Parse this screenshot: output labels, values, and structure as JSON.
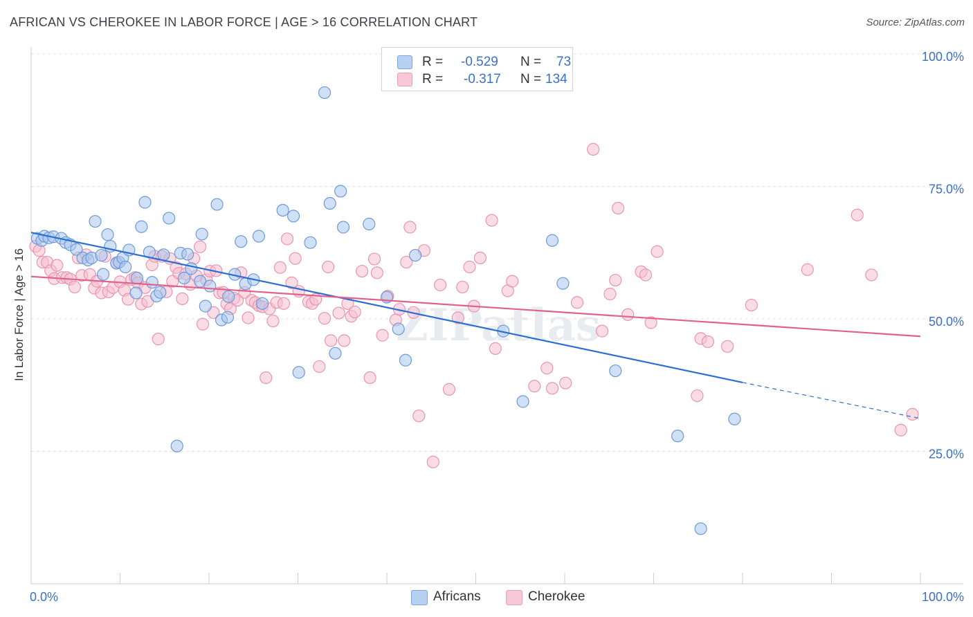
{
  "title": "AFRICAN VS CHEROKEE IN LABOR FORCE | AGE > 16 CORRELATION CHART",
  "source": "Source: ZipAtlas.com",
  "watermark": "ZIPatlas",
  "legend": {
    "r_label": "R =",
    "n_label": "N =",
    "africans": {
      "r": "-0.529",
      "n": "73"
    },
    "cherokee": {
      "r": "-0.317",
      "n": "134"
    }
  },
  "colors": {
    "africans_fill": "#a9c6ee",
    "africans_stroke": "#6d9ad8",
    "africans_line": "#2a6fd0",
    "cherokee_fill": "#f6bfd0",
    "cherokee_stroke": "#e895b1",
    "cherokee_line": "#e0628b",
    "axis_label": "#3b6fc7"
  },
  "chart_data": {
    "type": "scatter",
    "title": "AFRICAN VS CHEROKEE IN LABOR FORCE | AGE > 16 CORRELATION CHART",
    "xlabel": "",
    "ylabel": "In Labor Force | Age > 16",
    "xlim": [
      0,
      100
    ],
    "ylim": [
      0,
      100
    ],
    "x_tick_labels": [
      "0.0%",
      "100.0%"
    ],
    "y_ticks": [
      25,
      50,
      75,
      100
    ],
    "y_tick_labels": [
      "25.0%",
      "50.0%",
      "75.0%",
      "100.0%"
    ],
    "grid": true,
    "legend_position": "top-center",
    "series": [
      {
        "name": "Africans",
        "trend": {
          "x0": 0,
          "y0": 66.3,
          "x1": 80,
          "y1": 38.0,
          "dashed_to_x": 100,
          "dashed_to_y": 31.2
        },
        "points": [
          [
            0.7,
            65.2
          ],
          [
            1.2,
            64.8
          ],
          [
            1.5,
            65.6
          ],
          [
            2.0,
            65.3
          ],
          [
            2.5,
            65.5
          ],
          [
            3.4,
            65.2
          ],
          [
            3.9,
            64.4
          ],
          [
            4.4,
            64.0
          ],
          [
            5.1,
            63.1
          ],
          [
            5.8,
            61.5
          ],
          [
            6.4,
            61.1
          ],
          [
            6.8,
            61.5
          ],
          [
            7.2,
            68.4
          ],
          [
            7.9,
            62.0
          ],
          [
            8.1,
            58.4
          ],
          [
            8.6,
            65.9
          ],
          [
            8.9,
            63.7
          ],
          [
            9.6,
            60.5
          ],
          [
            9.9,
            60.7
          ],
          [
            10.3,
            61.5
          ],
          [
            10.6,
            59.8
          ],
          [
            11.0,
            63.0
          ],
          [
            11.8,
            54.9
          ],
          [
            11.9,
            57.7
          ],
          [
            12.4,
            67.4
          ],
          [
            12.8,
            72.0
          ],
          [
            13.3,
            62.6
          ],
          [
            13.6,
            56.9
          ],
          [
            14.1,
            54.3
          ],
          [
            14.5,
            55.0
          ],
          [
            14.9,
            62.1
          ],
          [
            15.5,
            69.0
          ],
          [
            16.4,
            26.0
          ],
          [
            16.8,
            62.4
          ],
          [
            17.2,
            57.7
          ],
          [
            17.6,
            62.2
          ],
          [
            18.0,
            59.5
          ],
          [
            19.0,
            57.1
          ],
          [
            19.2,
            66.0
          ],
          [
            19.6,
            52.4
          ],
          [
            20.1,
            56.2
          ],
          [
            20.9,
            71.6
          ],
          [
            21.4,
            49.8
          ],
          [
            22.1,
            50.3
          ],
          [
            22.2,
            54.2
          ],
          [
            22.9,
            58.4
          ],
          [
            23.6,
            64.6
          ],
          [
            24.1,
            56.6
          ],
          [
            25.0,
            57.4
          ],
          [
            25.6,
            65.6
          ],
          [
            26.0,
            52.9
          ],
          [
            28.3,
            70.5
          ],
          [
            29.5,
            69.4
          ],
          [
            30.1,
            39.9
          ],
          [
            31.4,
            64.4
          ],
          [
            33.0,
            92.7
          ],
          [
            33.6,
            71.8
          ],
          [
            34.2,
            43.5
          ],
          [
            34.8,
            74.1
          ],
          [
            35.1,
            67.3
          ],
          [
            38.0,
            67.9
          ],
          [
            40.0,
            54.1
          ],
          [
            41.3,
            48.1
          ],
          [
            42.1,
            42.2
          ],
          [
            43.2,
            62.0
          ],
          [
            53.1,
            47.7
          ],
          [
            55.3,
            34.4
          ],
          [
            58.6,
            64.8
          ],
          [
            59.8,
            56.7
          ],
          [
            65.7,
            40.2
          ],
          [
            72.7,
            27.9
          ],
          [
            75.3,
            10.4
          ],
          [
            79.1,
            31.1
          ]
        ]
      },
      {
        "name": "Cherokee",
        "trend": {
          "x0": 0,
          "y0": 58.0,
          "x1": 100,
          "y1": 46.7
        },
        "points": [
          [
            0.5,
            63.7
          ],
          [
            0.9,
            62.9
          ],
          [
            1.3,
            60.7
          ],
          [
            1.8,
            60.7
          ],
          [
            2.2,
            59.1
          ],
          [
            2.6,
            57.6
          ],
          [
            2.9,
            60.1
          ],
          [
            3.5,
            57.8
          ],
          [
            4.0,
            57.8
          ],
          [
            4.4,
            57.5
          ],
          [
            4.9,
            56.0
          ],
          [
            5.3,
            61.5
          ],
          [
            5.7,
            58.2
          ],
          [
            6.2,
            62.1
          ],
          [
            6.6,
            58.4
          ],
          [
            7.1,
            55.8
          ],
          [
            7.4,
            57.1
          ],
          [
            7.9,
            54.9
          ],
          [
            8.3,
            61.8
          ],
          [
            8.7,
            55.1
          ],
          [
            9.2,
            55.9
          ],
          [
            9.6,
            60.6
          ],
          [
            10.0,
            57.0
          ],
          [
            10.5,
            55.4
          ],
          [
            10.9,
            53.7
          ],
          [
            11.3,
            57.4
          ],
          [
            11.7,
            57.8
          ],
          [
            12.0,
            56.8
          ],
          [
            12.4,
            52.8
          ],
          [
            12.8,
            55.9
          ],
          [
            13.1,
            53.3
          ],
          [
            13.6,
            60.2
          ],
          [
            13.9,
            61.8
          ],
          [
            14.3,
            46.2
          ],
          [
            14.7,
            61.8
          ],
          [
            15.2,
            55.1
          ],
          [
            15.6,
            61.4
          ],
          [
            15.9,
            57.1
          ],
          [
            16.3,
            59.7
          ],
          [
            16.6,
            58.6
          ],
          [
            17.0,
            53.8
          ],
          [
            17.4,
            58.5
          ],
          [
            17.9,
            56.5
          ],
          [
            18.3,
            61.4
          ],
          [
            18.6,
            58.1
          ],
          [
            19.0,
            63.6
          ],
          [
            19.3,
            49.0
          ],
          [
            19.7,
            57.4
          ],
          [
            20.1,
            59.0
          ],
          [
            20.5,
            51.2
          ],
          [
            20.8,
            59.1
          ],
          [
            21.2,
            54.9
          ],
          [
            21.6,
            55.0
          ],
          [
            22.0,
            52.8
          ],
          [
            22.4,
            51.9
          ],
          [
            22.8,
            53.9
          ],
          [
            23.2,
            53.5
          ],
          [
            23.6,
            58.7
          ],
          [
            24.0,
            55.0
          ],
          [
            24.4,
            50.2
          ],
          [
            24.8,
            53.5
          ],
          [
            25.2,
            53.1
          ],
          [
            25.6,
            52.5
          ],
          [
            26.0,
            52.3
          ],
          [
            26.4,
            38.9
          ],
          [
            26.8,
            51.9
          ],
          [
            27.2,
            49.6
          ],
          [
            27.6,
            53.1
          ],
          [
            28.0,
            59.7
          ],
          [
            28.4,
            52.9
          ],
          [
            28.8,
            65.1
          ],
          [
            29.3,
            56.8
          ],
          [
            29.7,
            61.4
          ],
          [
            30.1,
            55.2
          ],
          [
            31.2,
            53.2
          ],
          [
            31.6,
            52.9
          ],
          [
            32.0,
            53.7
          ],
          [
            32.4,
            41.0
          ],
          [
            33.0,
            50.1
          ],
          [
            33.4,
            59.8
          ],
          [
            33.7,
            45.9
          ],
          [
            34.6,
            51.1
          ],
          [
            35.2,
            45.9
          ],
          [
            35.6,
            52.9
          ],
          [
            36.0,
            50.5
          ],
          [
            36.4,
            51.3
          ],
          [
            37.2,
            59.0
          ],
          [
            38.1,
            38.9
          ],
          [
            38.6,
            61.3
          ],
          [
            38.9,
            58.7
          ],
          [
            39.5,
            46.9
          ],
          [
            40.1,
            54.3
          ],
          [
            41.0,
            49.8
          ],
          [
            41.4,
            51.8
          ],
          [
            42.2,
            60.7
          ],
          [
            42.6,
            67.3
          ],
          [
            43.0,
            51.2
          ],
          [
            43.6,
            31.7
          ],
          [
            44.2,
            62.9
          ],
          [
            45.2,
            23.0
          ],
          [
            46.0,
            56.4
          ],
          [
            47.0,
            36.7
          ],
          [
            48.0,
            50.2
          ],
          [
            48.5,
            56.0
          ],
          [
            49.3,
            59.8
          ],
          [
            49.8,
            52.4
          ],
          [
            50.5,
            61.5
          ],
          [
            51.8,
            68.6
          ],
          [
            52.2,
            44.4
          ],
          [
            53.6,
            55.3
          ],
          [
            54.1,
            57.1
          ],
          [
            56.6,
            37.3
          ],
          [
            58.0,
            40.7
          ],
          [
            58.6,
            36.9
          ],
          [
            60.1,
            37.9
          ],
          [
            61.4,
            53.1
          ],
          [
            63.2,
            82.0
          ],
          [
            64.2,
            47.7
          ],
          [
            65.1,
            54.7
          ],
          [
            65.7,
            57.3
          ],
          [
            66.0,
            70.9
          ],
          [
            67.1,
            50.8
          ],
          [
            68.6,
            58.9
          ],
          [
            69.1,
            58.3
          ],
          [
            69.7,
            49.3
          ],
          [
            70.4,
            62.7
          ],
          [
            74.9,
            35.5
          ],
          [
            75.3,
            46.3
          ],
          [
            76.1,
            45.7
          ],
          [
            78.3,
            44.8
          ],
          [
            81.0,
            52.6
          ],
          [
            87.3,
            59.3
          ],
          [
            92.9,
            69.6
          ],
          [
            94.5,
            58.3
          ],
          [
            97.8,
            29.0
          ],
          [
            99.1,
            32.0
          ]
        ]
      }
    ]
  }
}
